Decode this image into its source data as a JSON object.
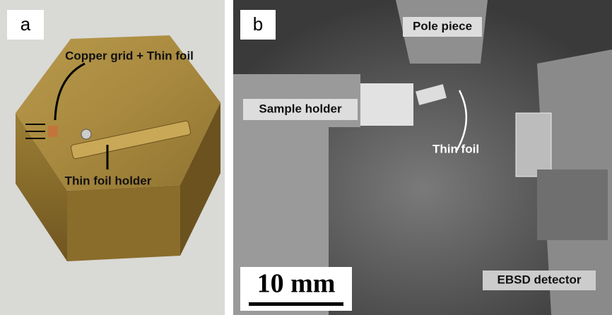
{
  "panel_a": {
    "letter": "a",
    "labels": [
      "Copper grid + Thin foil",
      "Thin foil holder"
    ]
  },
  "panel_b": {
    "letter": "b",
    "labels": [
      "Pole piece",
      "Sample holder",
      "Thin foil",
      "EBSD detector"
    ],
    "scale_bar": "10 mm"
  }
}
